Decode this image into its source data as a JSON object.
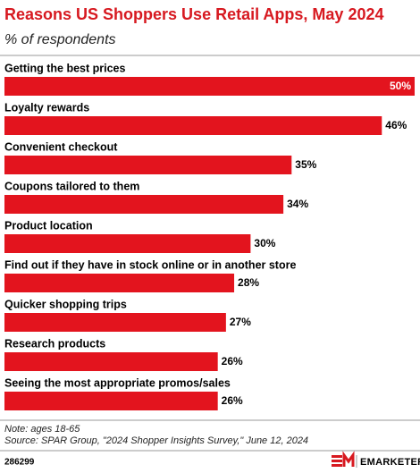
{
  "chart_data": {
    "type": "bar",
    "orientation": "horizontal",
    "title": "Reasons US Shoppers Use Retail Apps, May 2024",
    "subtitle": "% of respondents",
    "categories": [
      "Getting the best prices",
      "Loyalty rewards",
      "Convenient checkout",
      "Coupons tailored to them",
      "Product location",
      "Find out if they have in stock online or in another store",
      "Quicker shopping trips",
      "Research products",
      "Seeing the most appropriate promos/sales"
    ],
    "values": [
      50,
      46,
      35,
      34,
      30,
      28,
      27,
      26,
      26
    ],
    "value_labels": [
      "50%",
      "46%",
      "35%",
      "34%",
      "30%",
      "28%",
      "27%",
      "26%",
      "26%"
    ],
    "color": "#e3141e",
    "note": "Note: ages 18-65",
    "source": "Source: SPAR Group, \"2024 Shopper Insights Survey,\" June 12, 2024",
    "chart_id": "286299",
    "brand": "EMARKETER"
  }
}
